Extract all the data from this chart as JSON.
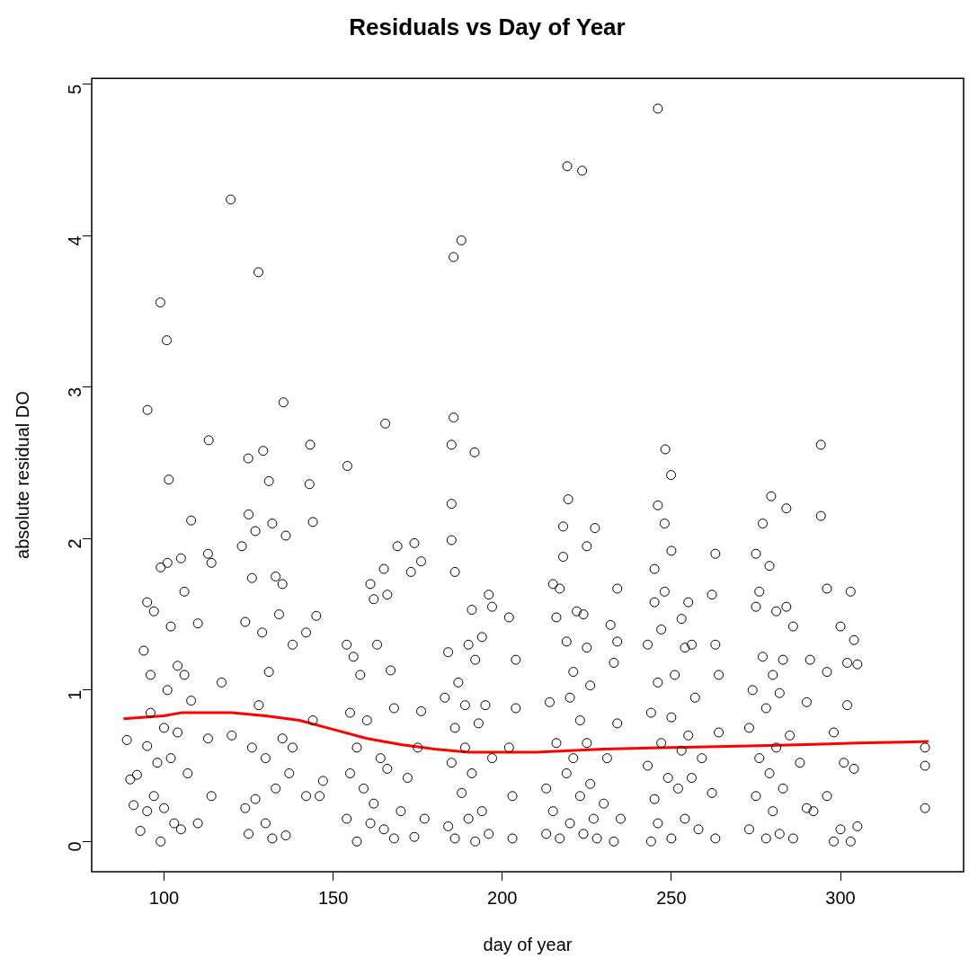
{
  "chart_data": {
    "type": "scatter",
    "title": "Residuals vs Day of Year",
    "xlabel": "day of year",
    "ylabel": "absolute residual DO",
    "xlim": [
      78.6,
      336.4
    ],
    "ylim": [
      -0.2,
      5.04
    ],
    "xticks": [
      100,
      150,
      200,
      250,
      300
    ],
    "yticks": [
      0,
      1,
      2,
      3,
      4,
      5
    ],
    "grid": false,
    "legend": false,
    "series": [
      {
        "type": "scatter",
        "color": "#000000",
        "marker": "circle",
        "x": [
          119.7,
          127.9,
          98.9,
          100.8,
          95.1,
          101.4,
          113.2,
          135.3,
          124.9,
          129.3,
          143.2,
          154.2,
          165.4,
          185.6,
          187.9,
          185.6,
          191.8,
          219.2,
          223.6,
          246,
          248.2,
          249.9,
          294.2,
          279.5,
          294.2,
          219.5,
          227.4,
          89,
          90,
          91,
          92,
          93,
          94,
          95,
          95,
          95,
          96,
          96,
          97,
          97,
          98,
          99,
          99,
          100,
          100,
          101,
          101,
          102,
          102,
          103,
          104,
          104,
          105,
          105,
          106,
          106,
          107,
          108,
          108,
          110,
          110,
          113,
          113,
          114,
          114,
          117,
          120,
          123,
          124,
          124,
          125,
          125,
          126,
          126,
          127,
          127,
          128,
          129,
          130,
          130,
          131,
          131,
          132,
          132,
          133,
          133,
          134,
          135,
          135,
          136,
          136,
          137,
          138,
          138,
          142,
          142,
          143,
          144,
          144,
          145,
          146,
          147,
          154,
          154,
          155,
          155,
          156,
          157,
          157,
          158,
          159,
          160,
          161,
          161,
          162,
          162,
          163,
          164,
          165,
          165,
          166,
          166,
          167,
          168,
          168,
          169,
          170,
          172,
          173,
          174,
          174,
          175,
          176,
          176,
          177,
          183,
          184,
          184,
          185,
          185,
          185,
          185,
          186,
          186,
          186,
          187,
          188,
          189,
          189,
          190,
          190,
          191,
          191,
          192,
          192,
          193,
          194,
          194,
          195,
          196,
          196,
          197,
          197,
          202,
          202,
          203,
          203,
          204,
          204,
          213,
          213,
          214,
          215,
          215,
          216,
          216,
          217,
          217,
          218,
          218,
          219,
          219,
          220,
          220,
          221,
          221,
          222,
          223,
          223,
          224,
          224,
          225,
          225,
          225,
          226,
          226,
          227,
          228,
          230,
          231,
          232,
          233,
          233,
          234,
          234,
          234,
          235,
          243,
          243,
          244,
          244,
          245,
          245,
          245,
          246,
          246,
          246,
          247,
          247,
          248,
          248,
          249,
          250,
          250,
          250,
          251,
          252,
          253,
          253,
          254,
          254,
          255,
          255,
          256,
          256,
          257,
          258,
          259,
          262,
          262,
          263,
          263,
          263,
          264,
          264,
          273,
          273,
          274,
          275,
          275,
          275,
          276,
          276,
          277,
          277,
          278,
          278,
          279,
          279,
          280,
          280,
          281,
          281,
          282,
          282,
          283,
          283,
          284,
          284,
          285,
          286,
          286,
          288,
          290,
          290,
          291,
          292,
          296,
          296,
          296,
          298,
          298,
          300,
          300,
          301,
          302,
          302,
          303,
          303,
          304,
          304,
          305,
          305,
          325,
          325,
          325
        ],
        "values": [
          4.24,
          3.76,
          3.56,
          3.31,
          2.85,
          2.39,
          2.65,
          2.9,
          2.53,
          2.58,
          2.62,
          2.48,
          2.76,
          3.86,
          3.97,
          2.8,
          2.57,
          4.46,
          4.43,
          4.84,
          2.59,
          2.42,
          2.62,
          2.28,
          2.15,
          2.26,
          2.07,
          0.67,
          0.41,
          0.24,
          0.44,
          0.07,
          1.26,
          1.58,
          0.2,
          0.63,
          1.1,
          0.85,
          1.52,
          0.3,
          0.52,
          1.81,
          0,
          0.75,
          0.22,
          1.84,
          1,
          1.42,
          0.55,
          0.12,
          1.16,
          0.72,
          1.87,
          0.08,
          1.65,
          1.1,
          0.45,
          2.12,
          0.93,
          1.44,
          0.12,
          1.9,
          0.68,
          1.84,
          0.3,
          1.05,
          0.7,
          1.95,
          0.22,
          1.45,
          2.16,
          0.05,
          1.74,
          0.62,
          2.05,
          0.28,
          0.9,
          1.38,
          0.12,
          0.55,
          2.38,
          1.12,
          2.1,
          0.02,
          1.75,
          0.35,
          1.5,
          1.7,
          0.68,
          2.02,
          0.04,
          0.45,
          1.3,
          0.62,
          1.38,
          0.3,
          2.36,
          2.11,
          0.8,
          1.49,
          0.3,
          0.4,
          1.3,
          0.15,
          0.85,
          0.45,
          1.22,
          0,
          0.62,
          1.1,
          0.35,
          0.8,
          1.7,
          0.12,
          1.6,
          0.25,
          1.3,
          0.55,
          1.8,
          0.08,
          1.63,
          0.48,
          1.13,
          0.88,
          0.02,
          1.95,
          0.2,
          0.42,
          1.78,
          1.97,
          0.03,
          0.62,
          1.85,
          0.86,
          0.15,
          0.95,
          0.1,
          1.25,
          2.62,
          2.23,
          1.99,
          0.52,
          1.78,
          0.02,
          0.75,
          1.05,
          0.32,
          0.62,
          0.9,
          1.3,
          0.15,
          1.53,
          0.45,
          1.2,
          0,
          0.78,
          1.35,
          0.2,
          0.9,
          1.63,
          0.05,
          1.55,
          0.55,
          0.62,
          1.48,
          0.3,
          0.02,
          1.2,
          0.88,
          0.05,
          0.35,
          0.92,
          1.7,
          0.2,
          1.48,
          0.65,
          1.67,
          0.02,
          2.08,
          1.88,
          1.32,
          0.45,
          0.95,
          0.12,
          1.12,
          0.55,
          1.52,
          0.3,
          0.8,
          1.5,
          0.05,
          1.95,
          1.28,
          0.65,
          1.03,
          0.38,
          0.15,
          0.02,
          0.25,
          0.55,
          1.43,
          1.18,
          0,
          1.67,
          1.32,
          0.78,
          0.15,
          1.3,
          0.5,
          0,
          0.85,
          1.8,
          1.58,
          0.28,
          2.22,
          1.05,
          0.12,
          1.4,
          0.65,
          2.1,
          1.65,
          0.42,
          1.92,
          0.82,
          0.02,
          1.1,
          0.35,
          1.47,
          0.6,
          1.28,
          0.15,
          1.58,
          0.7,
          1.3,
          0.42,
          0.95,
          0.08,
          0.55,
          1.63,
          0.32,
          1.9,
          1.3,
          0.02,
          1.1,
          0.72,
          0.75,
          0.08,
          1,
          1.9,
          1.55,
          0.3,
          1.65,
          0.55,
          2.1,
          1.22,
          0.02,
          0.88,
          1.82,
          0.45,
          1.1,
          0.2,
          1.52,
          0.62,
          0.98,
          0.05,
          1.2,
          0.35,
          1.55,
          2.2,
          0.7,
          1.42,
          0.02,
          0.52,
          0.92,
          0.22,
          1.2,
          0.2,
          1.67,
          1.12,
          0.3,
          0.72,
          0,
          1.42,
          0.08,
          0.52,
          1.18,
          0.9,
          0,
          1.65,
          1.33,
          0.48,
          1.17,
          0.1,
          0.62,
          0.5,
          0.22
        ]
      },
      {
        "type": "line",
        "color": "#ff0000",
        "marker": "none",
        "x": [
          88,
          100,
          105,
          120,
          130,
          140,
          150,
          160,
          170,
          180,
          190,
          200,
          210,
          220,
          230,
          250,
          270,
          290,
          305,
          326
        ],
        "values": [
          0.81,
          0.83,
          0.85,
          0.85,
          0.83,
          0.8,
          0.74,
          0.68,
          0.64,
          0.61,
          0.59,
          0.59,
          0.59,
          0.6,
          0.61,
          0.62,
          0.63,
          0.64,
          0.65,
          0.66
        ]
      }
    ]
  }
}
